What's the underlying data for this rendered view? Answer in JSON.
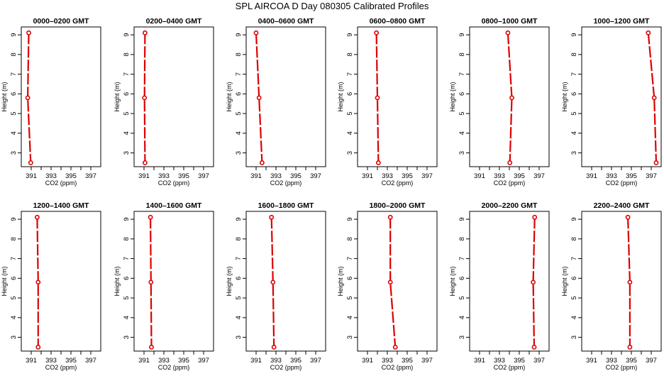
{
  "title": "SPL AIRCOA D  Day 080305  Calibrated Profiles",
  "colors": {
    "series": "#dd0000",
    "axis": "#000000"
  },
  "chart_data": [
    {
      "type": "line",
      "title": "0000–0200 GMT",
      "xlabel": "CO2 (ppm)",
      "ylabel": "Height (m)",
      "xlim": [
        390,
        398
      ],
      "ylim": [
        2.3,
        9.4
      ],
      "xticks": [
        391,
        392,
        393,
        394,
        395,
        396,
        397
      ],
      "xtick_labels": [
        "391",
        "",
        "393",
        "",
        "395",
        "",
        "397"
      ],
      "yticks": [
        3,
        4,
        5,
        6,
        7,
        8,
        9
      ],
      "x": [
        390.75,
        390.65,
        390.95
      ],
      "y": [
        9.1,
        5.8,
        2.5
      ]
    },
    {
      "type": "line",
      "title": "0200–0400 GMT",
      "xlabel": "CO2 (ppm)",
      "ylabel": "Height (m)",
      "xlim": [
        390,
        398
      ],
      "ylim": [
        2.3,
        9.4
      ],
      "xticks": [
        391,
        392,
        393,
        394,
        395,
        396,
        397
      ],
      "xtick_labels": [
        "391",
        "",
        "393",
        "",
        "395",
        "",
        "397"
      ],
      "yticks": [
        3,
        4,
        5,
        6,
        7,
        8,
        9
      ],
      "x": [
        391.1,
        391.05,
        391.1
      ],
      "y": [
        9.1,
        5.8,
        2.5
      ]
    },
    {
      "type": "line",
      "title": "0400–0600 GMT",
      "xlabel": "CO2 (ppm)",
      "ylabel": "Height (m)",
      "xlim": [
        390,
        398
      ],
      "ylim": [
        2.3,
        9.4
      ],
      "xticks": [
        391,
        392,
        393,
        394,
        395,
        396,
        397
      ],
      "xtick_labels": [
        "391",
        "",
        "393",
        "",
        "395",
        "",
        "397"
      ],
      "yticks": [
        3,
        4,
        5,
        6,
        7,
        8,
        9
      ],
      "x": [
        391.0,
        391.3,
        391.6
      ],
      "y": [
        9.1,
        5.8,
        2.5
      ]
    },
    {
      "type": "line",
      "title": "0600–0800 GMT",
      "xlabel": "CO2 (ppm)",
      "ylabel": "Height (m)",
      "xlim": [
        390,
        398
      ],
      "ylim": [
        2.3,
        9.4
      ],
      "xticks": [
        391,
        392,
        393,
        394,
        395,
        396,
        397
      ],
      "xtick_labels": [
        "391",
        "",
        "393",
        "",
        "395",
        "",
        "397"
      ],
      "yticks": [
        3,
        4,
        5,
        6,
        7,
        8,
        9
      ],
      "x": [
        391.9,
        392.0,
        392.1
      ],
      "y": [
        9.1,
        5.8,
        2.5
      ]
    },
    {
      "type": "line",
      "title": "0800–1000 GMT",
      "xlabel": "CO2 (ppm)",
      "ylabel": "Height (m)",
      "xlim": [
        390,
        398
      ],
      "ylim": [
        2.3,
        9.4
      ],
      "xticks": [
        391,
        392,
        393,
        394,
        395,
        396,
        397
      ],
      "xtick_labels": [
        "391",
        "",
        "393",
        "",
        "395",
        "",
        "397"
      ],
      "yticks": [
        3,
        4,
        5,
        6,
        7,
        8,
        9
      ],
      "x": [
        393.85,
        394.25,
        394.05
      ],
      "y": [
        9.1,
        5.8,
        2.5
      ]
    },
    {
      "type": "line",
      "title": "1000–1200 GMT",
      "xlabel": "CO2 (ppm)",
      "ylabel": "Height (m)",
      "xlim": [
        390,
        398
      ],
      "ylim": [
        2.3,
        9.4
      ],
      "xticks": [
        391,
        392,
        393,
        394,
        395,
        396,
        397
      ],
      "xtick_labels": [
        "391",
        "",
        "393",
        "",
        "395",
        "",
        "397"
      ],
      "yticks": [
        3,
        4,
        5,
        6,
        7,
        8,
        9
      ],
      "x": [
        396.7,
        397.3,
        397.5
      ],
      "y": [
        9.1,
        5.8,
        2.5
      ]
    },
    {
      "type": "line",
      "title": "1200–1400 GMT",
      "xlabel": "CO2 (ppm)",
      "ylabel": "Height (m)",
      "xlim": [
        390,
        398
      ],
      "ylim": [
        2.3,
        9.4
      ],
      "xticks": [
        391,
        392,
        393,
        394,
        395,
        396,
        397
      ],
      "xtick_labels": [
        "391",
        "",
        "393",
        "",
        "395",
        "",
        "397"
      ],
      "yticks": [
        3,
        4,
        5,
        6,
        7,
        8,
        9
      ],
      "x": [
        391.6,
        391.7,
        391.7
      ],
      "y": [
        9.1,
        5.8,
        2.5
      ]
    },
    {
      "type": "line",
      "title": "1400–1600 GMT",
      "xlabel": "CO2 (ppm)",
      "ylabel": "Height (m)",
      "xlim": [
        390,
        398
      ],
      "ylim": [
        2.3,
        9.4
      ],
      "xticks": [
        391,
        392,
        393,
        394,
        395,
        396,
        397
      ],
      "xtick_labels": [
        "391",
        "",
        "393",
        "",
        "395",
        "",
        "397"
      ],
      "yticks": [
        3,
        4,
        5,
        6,
        7,
        8,
        9
      ],
      "x": [
        391.65,
        391.7,
        391.75
      ],
      "y": [
        9.1,
        5.8,
        2.5
      ]
    },
    {
      "type": "line",
      "title": "1600–1800 GMT",
      "xlabel": "CO2 (ppm)",
      "ylabel": "Height (m)",
      "xlim": [
        390,
        398
      ],
      "ylim": [
        2.3,
        9.4
      ],
      "xticks": [
        391,
        392,
        393,
        394,
        395,
        396,
        397
      ],
      "xtick_labels": [
        "391",
        "",
        "393",
        "",
        "395",
        "",
        "397"
      ],
      "yticks": [
        3,
        4,
        5,
        6,
        7,
        8,
        9
      ],
      "x": [
        392.55,
        392.7,
        392.8
      ],
      "y": [
        9.1,
        5.8,
        2.5
      ]
    },
    {
      "type": "line",
      "title": "1800–2000 GMT",
      "xlabel": "CO2 (ppm)",
      "ylabel": "Height (m)",
      "xlim": [
        390,
        398
      ],
      "ylim": [
        2.3,
        9.4
      ],
      "xticks": [
        391,
        392,
        393,
        394,
        395,
        396,
        397
      ],
      "xtick_labels": [
        "391",
        "",
        "393",
        "",
        "395",
        "",
        "397"
      ],
      "yticks": [
        3,
        4,
        5,
        6,
        7,
        8,
        9
      ],
      "x": [
        393.3,
        393.3,
        393.8
      ],
      "y": [
        9.1,
        5.8,
        2.5
      ]
    },
    {
      "type": "line",
      "title": "2000–2200 GMT",
      "xlabel": "CO2 (ppm)",
      "ylabel": "Height (m)",
      "xlim": [
        390,
        398
      ],
      "ylim": [
        2.3,
        9.4
      ],
      "xticks": [
        391,
        392,
        393,
        394,
        395,
        396,
        397
      ],
      "xtick_labels": [
        "391",
        "",
        "393",
        "",
        "395",
        "",
        "397"
      ],
      "yticks": [
        3,
        4,
        5,
        6,
        7,
        8,
        9
      ],
      "x": [
        396.55,
        396.4,
        396.5
      ],
      "y": [
        9.1,
        5.8,
        2.5
      ]
    },
    {
      "type": "line",
      "title": "2200–2400 GMT",
      "xlabel": "CO2 (ppm)",
      "ylabel": "Height (m)",
      "xlim": [
        390,
        398
      ],
      "ylim": [
        2.3,
        9.4
      ],
      "xticks": [
        391,
        392,
        393,
        394,
        395,
        396,
        397
      ],
      "xtick_labels": [
        "391",
        "",
        "393",
        "",
        "395",
        "",
        "397"
      ],
      "yticks": [
        3,
        4,
        5,
        6,
        7,
        8,
        9
      ],
      "x": [
        394.65,
        394.85,
        394.85
      ],
      "y": [
        9.1,
        5.8,
        2.5
      ]
    }
  ]
}
